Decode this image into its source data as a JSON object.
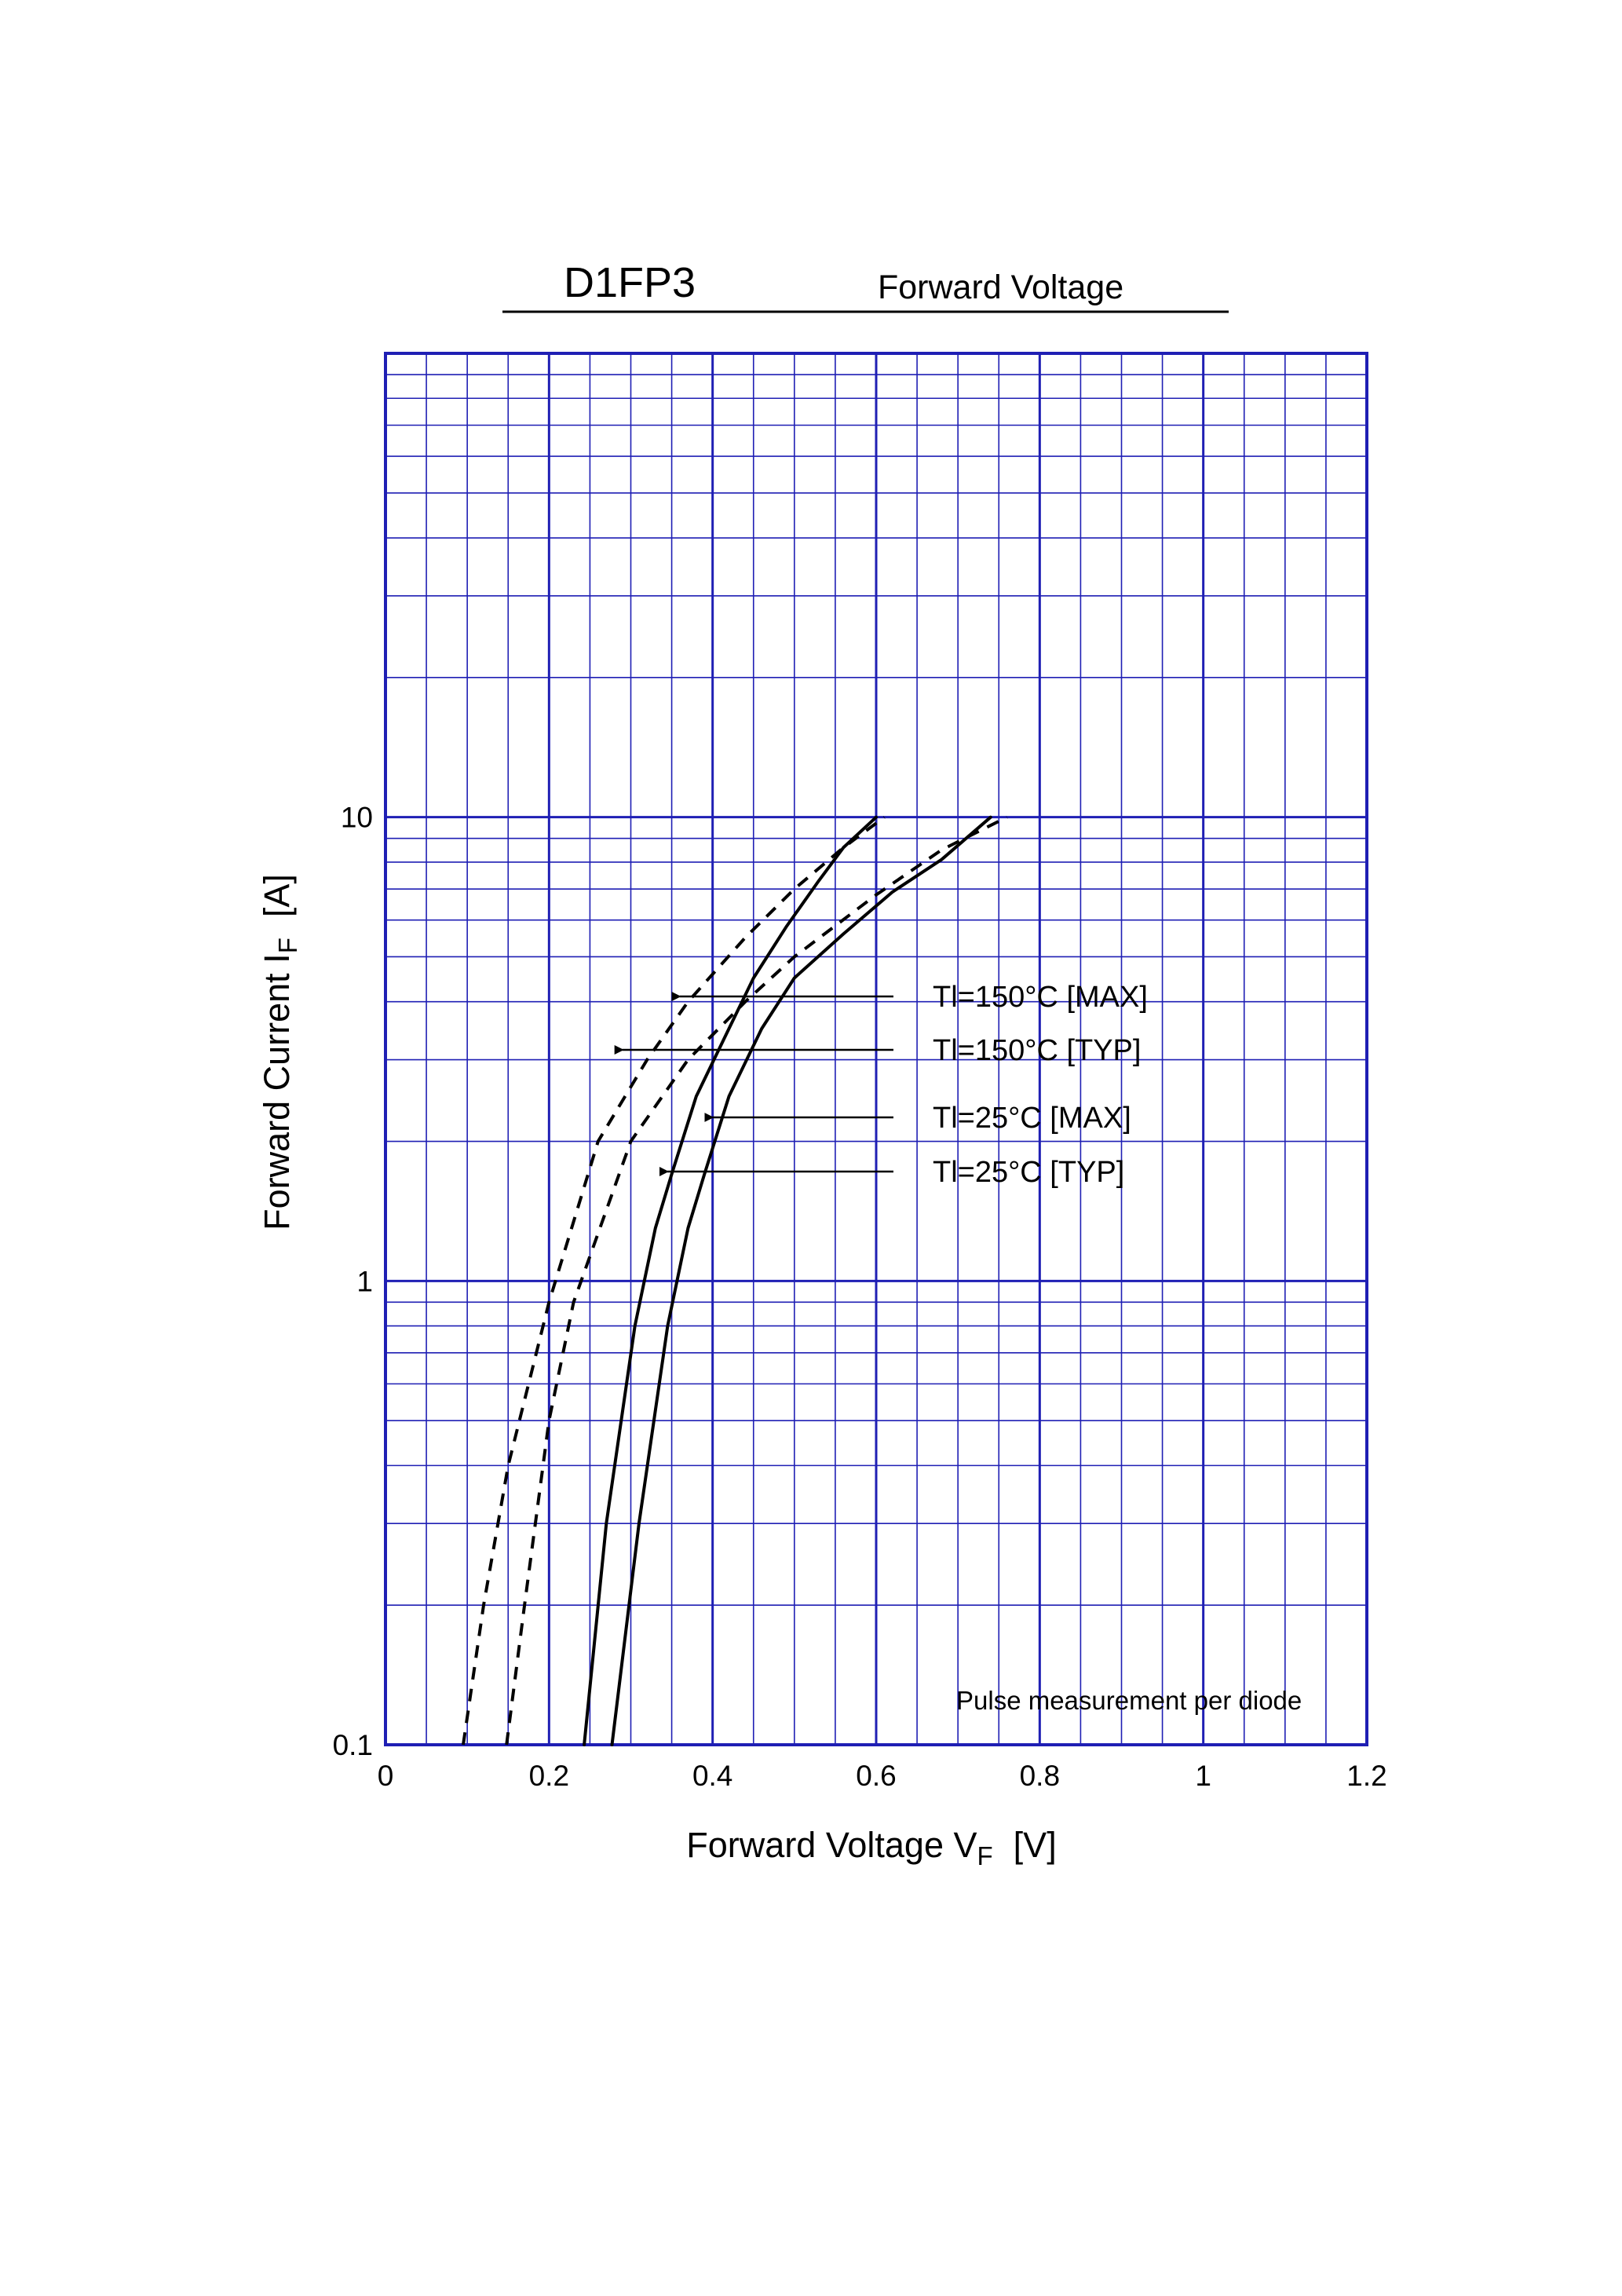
{
  "chart_data": {
    "type": "line",
    "title": "D1FP3",
    "subtitle": "Forward Voltage",
    "xlabel": {
      "main": "Forward Voltage V",
      "sub": "F",
      "unit": "[V]"
    },
    "ylabel": {
      "main": "Forward Current I",
      "sub": "F",
      "unit": "[A]"
    },
    "xlim": [
      0,
      1.2
    ],
    "ylim": [
      0.1,
      100
    ],
    "yscale": "log",
    "x_ticks": [
      0,
      0.2,
      0.4,
      0.6,
      0.8,
      1,
      1.2
    ],
    "x_tick_labels": [
      "0",
      "0.2",
      "0.4",
      "0.6",
      "0.8",
      "1",
      "1.2"
    ],
    "y_ticks": [
      0.1,
      1,
      10
    ],
    "y_tick_labels": [
      "0.1",
      "1",
      "10"
    ],
    "grid": true,
    "grid_color": "#1f1fb4",
    "note": "Pulse measurement per diode",
    "series": [
      {
        "name": "Tl=150°C [MAX]",
        "style": "dashed",
        "points": [
          [
            0.148,
            0.1
          ],
          [
            0.17,
            0.2
          ],
          [
            0.2,
            0.5
          ],
          [
            0.23,
            0.9
          ],
          [
            0.3,
            2.0
          ],
          [
            0.37,
            3.0
          ],
          [
            0.44,
            4.0
          ],
          [
            0.5,
            5.0
          ],
          [
            0.6,
            6.8
          ],
          [
            0.68,
            8.5
          ],
          [
            0.76,
            10
          ]
        ]
      },
      {
        "name": "Tl=150°C [TYP]",
        "style": "dashed",
        "points": [
          [
            0.095,
            0.1
          ],
          [
            0.12,
            0.2
          ],
          [
            0.15,
            0.4
          ],
          [
            0.2,
            0.9
          ],
          [
            0.26,
            2.0
          ],
          [
            0.32,
            3.0
          ],
          [
            0.37,
            4.0
          ],
          [
            0.44,
            5.5
          ],
          [
            0.5,
            7.0
          ],
          [
            0.56,
            8.6
          ],
          [
            0.61,
            10
          ]
        ]
      },
      {
        "name": "Tl=25°C [MAX]",
        "style": "solid",
        "points": [
          [
            0.277,
            0.1
          ],
          [
            0.31,
            0.3
          ],
          [
            0.345,
            0.8
          ],
          [
            0.37,
            1.3
          ],
          [
            0.39,
            1.7
          ],
          [
            0.42,
            2.5
          ],
          [
            0.46,
            3.5
          ],
          [
            0.5,
            4.5
          ],
          [
            0.56,
            5.6
          ],
          [
            0.62,
            6.9
          ],
          [
            0.68,
            8.1
          ],
          [
            0.74,
            10
          ]
        ]
      },
      {
        "name": "Tl=25°C [TYP]",
        "style": "solid",
        "points": [
          [
            0.243,
            0.1
          ],
          [
            0.27,
            0.3
          ],
          [
            0.305,
            0.8
          ],
          [
            0.33,
            1.3
          ],
          [
            0.35,
            1.7
          ],
          [
            0.38,
            2.5
          ],
          [
            0.42,
            3.5
          ],
          [
            0.45,
            4.5
          ],
          [
            0.49,
            5.8
          ],
          [
            0.53,
            7.3
          ],
          [
            0.56,
            8.6
          ],
          [
            0.6,
            10
          ]
        ]
      }
    ],
    "annotations": [
      {
        "text": "Tl=150°C [MAX]",
        "target": [
          0.35,
          2.85
        ]
      },
      {
        "text": "Tl=150°C [TYP]",
        "target": [
          0.28,
          2.25
        ]
      },
      {
        "text": "Tl=25°C [MAX]",
        "target": [
          0.39,
          1.68
        ]
      },
      {
        "text": "Tl=25°C [TYP]",
        "target": [
          0.335,
          1.3
        ]
      }
    ]
  }
}
